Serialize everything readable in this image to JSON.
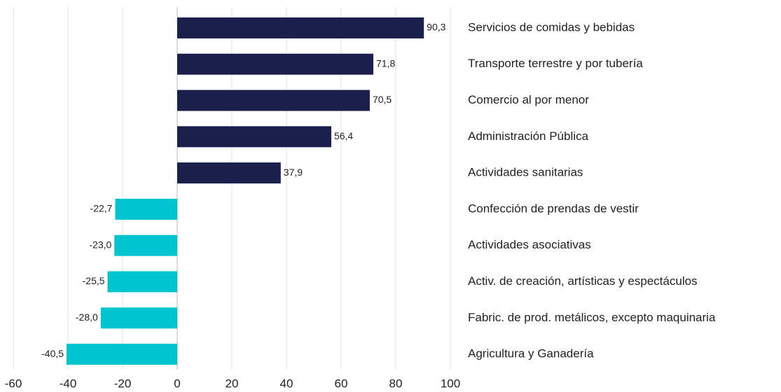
{
  "chart_data": {
    "type": "hbar",
    "categories": [
      "Servicios de comidas y bebidas",
      "Transporte terrestre y por tubería",
      "Comercio al por menor",
      "Administración Pública",
      "Actividades sanitarias",
      "Confección de prendas de vestir",
      "Actividades asociativas",
      "Activ. de creación, artísticas y espectáculos",
      "Fabric. de prod. metálicos, excepto maquinaria",
      "Agricultura y Ganadería"
    ],
    "values": [
      90.3,
      71.8,
      70.5,
      56.4,
      37.9,
      -22.7,
      -23.0,
      -25.5,
      -28.0,
      -40.5
    ],
    "value_labels": [
      "90,3",
      "71,8",
      "70,5",
      "56,4",
      "37,9",
      "-22,7",
      "-23,0",
      "-25,5",
      "-28,0",
      "-40,5"
    ],
    "colors": [
      "#1b1f4b",
      "#1b1f4b",
      "#1b1f4b",
      "#1b1f4b",
      "#1b1f4b",
      "#00c4cf",
      "#00c4cf",
      "#00c4cf",
      "#00c4cf",
      "#00c4cf"
    ],
    "xlim": [
      -60,
      100
    ],
    "xticks": [
      -60,
      -40,
      -20,
      0,
      20,
      40,
      60,
      80,
      100
    ],
    "grid": true
  }
}
